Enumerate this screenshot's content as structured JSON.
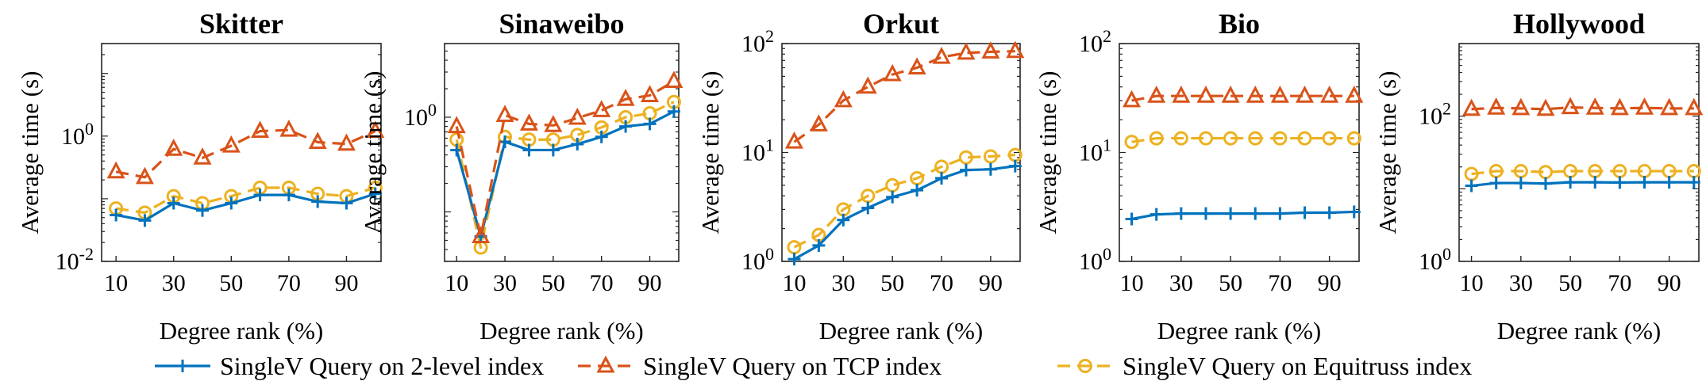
{
  "colors": {
    "level2": "#0072BD",
    "tcp": "#D95319",
    "equitruss": "#EDB120"
  },
  "legend": {
    "items": [
      {
        "series": "level2",
        "label": "SingleV Query on 2-level index",
        "marker": "plus"
      },
      {
        "series": "tcp",
        "label": "SingleV Query on TCP index",
        "marker": "triangle"
      },
      {
        "series": "equitruss",
        "label": "SingleV Query on Equitruss index",
        "marker": "circle"
      }
    ],
    "placement": "bottom-center"
  },
  "chart_data": [
    {
      "type": "line",
      "title": "Skitter",
      "xlabel": "Degree rank (%)",
      "ylabel": "Average time (s)",
      "yscale": "log",
      "xlim": [
        5,
        102
      ],
      "ylim": [
        0.01,
        30
      ],
      "xticks": [
        10,
        30,
        50,
        70,
        90
      ],
      "yticks": [
        {
          "value": 0.01,
          "base": "10",
          "exp": "-2"
        },
        {
          "value": 1,
          "base": "10",
          "exp": "0"
        }
      ],
      "x": [
        10,
        20,
        30,
        40,
        50,
        60,
        70,
        80,
        90,
        100
      ],
      "series": [
        {
          "key": "level2",
          "name": "SingleV Query on 2-level index",
          "values": [
            0.055,
            0.045,
            0.085,
            0.065,
            0.085,
            0.115,
            0.115,
            0.09,
            0.085,
            0.12
          ]
        },
        {
          "key": "tcp",
          "name": "SingleV Query on TCP index",
          "values": [
            0.27,
            0.22,
            0.62,
            0.45,
            0.7,
            1.2,
            1.25,
            0.8,
            0.75,
            1.2
          ]
        },
        {
          "key": "equitruss",
          "name": "SingleV Query on Equitruss index",
          "values": [
            0.07,
            0.06,
            0.11,
            0.085,
            0.11,
            0.15,
            0.15,
            0.12,
            0.11,
            0.15
          ]
        }
      ]
    },
    {
      "type": "line",
      "title": "Sinaweibo",
      "xlabel": "Degree rank (%)",
      "ylabel": "Average time (s)",
      "yscale": "log",
      "xlim": [
        5,
        102
      ],
      "ylim": [
        0.03,
        6
      ],
      "xticks": [
        10,
        30,
        50,
        70,
        90
      ],
      "yticks": [
        {
          "value": 1,
          "base": "10",
          "exp": "0"
        }
      ],
      "x": [
        10,
        20,
        30,
        40,
        50,
        60,
        70,
        80,
        90,
        100
      ],
      "series": [
        {
          "key": "level2",
          "name": "SingleV Query on 2-level index",
          "values": [
            0.45,
            0.055,
            0.55,
            0.45,
            0.45,
            0.52,
            0.62,
            0.8,
            0.85,
            1.15
          ]
        },
        {
          "key": "tcp",
          "name": "SingleV Query on TCP index",
          "values": [
            0.8,
            0.055,
            1.05,
            0.85,
            0.82,
            0.98,
            1.18,
            1.55,
            1.7,
            2.4
          ]
        },
        {
          "key": "equitruss",
          "name": "SingleV Query on Equitruss index",
          "values": [
            0.58,
            0.042,
            0.62,
            0.58,
            0.58,
            0.65,
            0.78,
            1.0,
            1.1,
            1.45
          ]
        }
      ]
    },
    {
      "type": "line",
      "title": "Orkut",
      "xlabel": "Degree rank (%)",
      "ylabel": "Average time (s)",
      "yscale": "log",
      "xlim": [
        5,
        102
      ],
      "ylim": [
        1,
        100
      ],
      "xticks": [
        10,
        30,
        50,
        70,
        90
      ],
      "yticks": [
        {
          "value": 1,
          "base": "10",
          "exp": "0"
        },
        {
          "value": 10,
          "base": "10",
          "exp": "1"
        },
        {
          "value": 100,
          "base": "10",
          "exp": "2"
        }
      ],
      "x": [
        10,
        20,
        30,
        40,
        50,
        60,
        70,
        80,
        90,
        100
      ],
      "series": [
        {
          "key": "level2",
          "name": "SingleV Query on 2-level index",
          "values": [
            1.05,
            1.4,
            2.4,
            3.1,
            3.9,
            4.5,
            5.8,
            6.9,
            7.0,
            7.5
          ]
        },
        {
          "key": "tcp",
          "name": "SingleV Query on TCP index",
          "values": [
            12.5,
            18,
            30,
            40,
            52,
            60,
            75,
            82,
            84,
            85
          ]
        },
        {
          "key": "equitruss",
          "name": "SingleV Query on Equitruss index",
          "values": [
            1.35,
            1.75,
            3.0,
            4.0,
            5.0,
            5.8,
            7.4,
            9.0,
            9.2,
            9.5
          ]
        }
      ]
    },
    {
      "type": "line",
      "title": "Bio",
      "xlabel": "Degree rank (%)",
      "ylabel": "Average time (s)",
      "yscale": "log",
      "xlim": [
        5,
        102
      ],
      "ylim": [
        1,
        100
      ],
      "xticks": [
        10,
        30,
        50,
        70,
        90
      ],
      "yticks": [
        {
          "value": 1,
          "base": "10",
          "exp": "0"
        },
        {
          "value": 10,
          "base": "10",
          "exp": "1"
        },
        {
          "value": 100,
          "base": "10",
          "exp": "2"
        }
      ],
      "x": [
        10,
        20,
        30,
        40,
        50,
        60,
        70,
        80,
        90,
        100
      ],
      "series": [
        {
          "key": "level2",
          "name": "SingleV Query on 2-level index",
          "values": [
            2.45,
            2.7,
            2.75,
            2.75,
            2.75,
            2.75,
            2.75,
            2.8,
            2.8,
            2.85
          ]
        },
        {
          "key": "tcp",
          "name": "SingleV Query on TCP index",
          "values": [
            30,
            33,
            33,
            33,
            33,
            33,
            33,
            33,
            33,
            33
          ]
        },
        {
          "key": "equitruss",
          "name": "SingleV Query on Equitruss index",
          "values": [
            12.5,
            13.5,
            13.5,
            13.5,
            13.5,
            13.5,
            13.5,
            13.5,
            13.5,
            13.5
          ]
        }
      ]
    },
    {
      "type": "line",
      "title": "Hollywood",
      "xlabel": "Degree rank (%)",
      "ylabel": "Average time (s)",
      "yscale": "log",
      "xlim": [
        5,
        102
      ],
      "ylim": [
        1,
        1000
      ],
      "xticks": [
        10,
        30,
        50,
        70,
        90
      ],
      "yticks": [
        {
          "value": 1,
          "base": "10",
          "exp": "0"
        },
        {
          "value": 100,
          "base": "10",
          "exp": "2"
        }
      ],
      "x": [
        10,
        20,
        30,
        40,
        50,
        60,
        70,
        80,
        90,
        100
      ],
      "series": [
        {
          "key": "level2",
          "name": "SingleV Query on 2-level index",
          "values": [
            11,
            12,
            12,
            11.8,
            12.3,
            12.3,
            12.2,
            12.3,
            12.3,
            12.3
          ]
        },
        {
          "key": "tcp",
          "name": "SingleV Query on TCP index",
          "values": [
            125,
            130,
            128,
            125,
            132,
            130,
            128,
            130,
            128,
            128
          ]
        },
        {
          "key": "equitruss",
          "name": "SingleV Query on Equitruss index",
          "values": [
            16,
            17.5,
            17.5,
            17,
            17.5,
            17.5,
            17.5,
            17.5,
            17.5,
            17.5
          ]
        }
      ]
    }
  ]
}
